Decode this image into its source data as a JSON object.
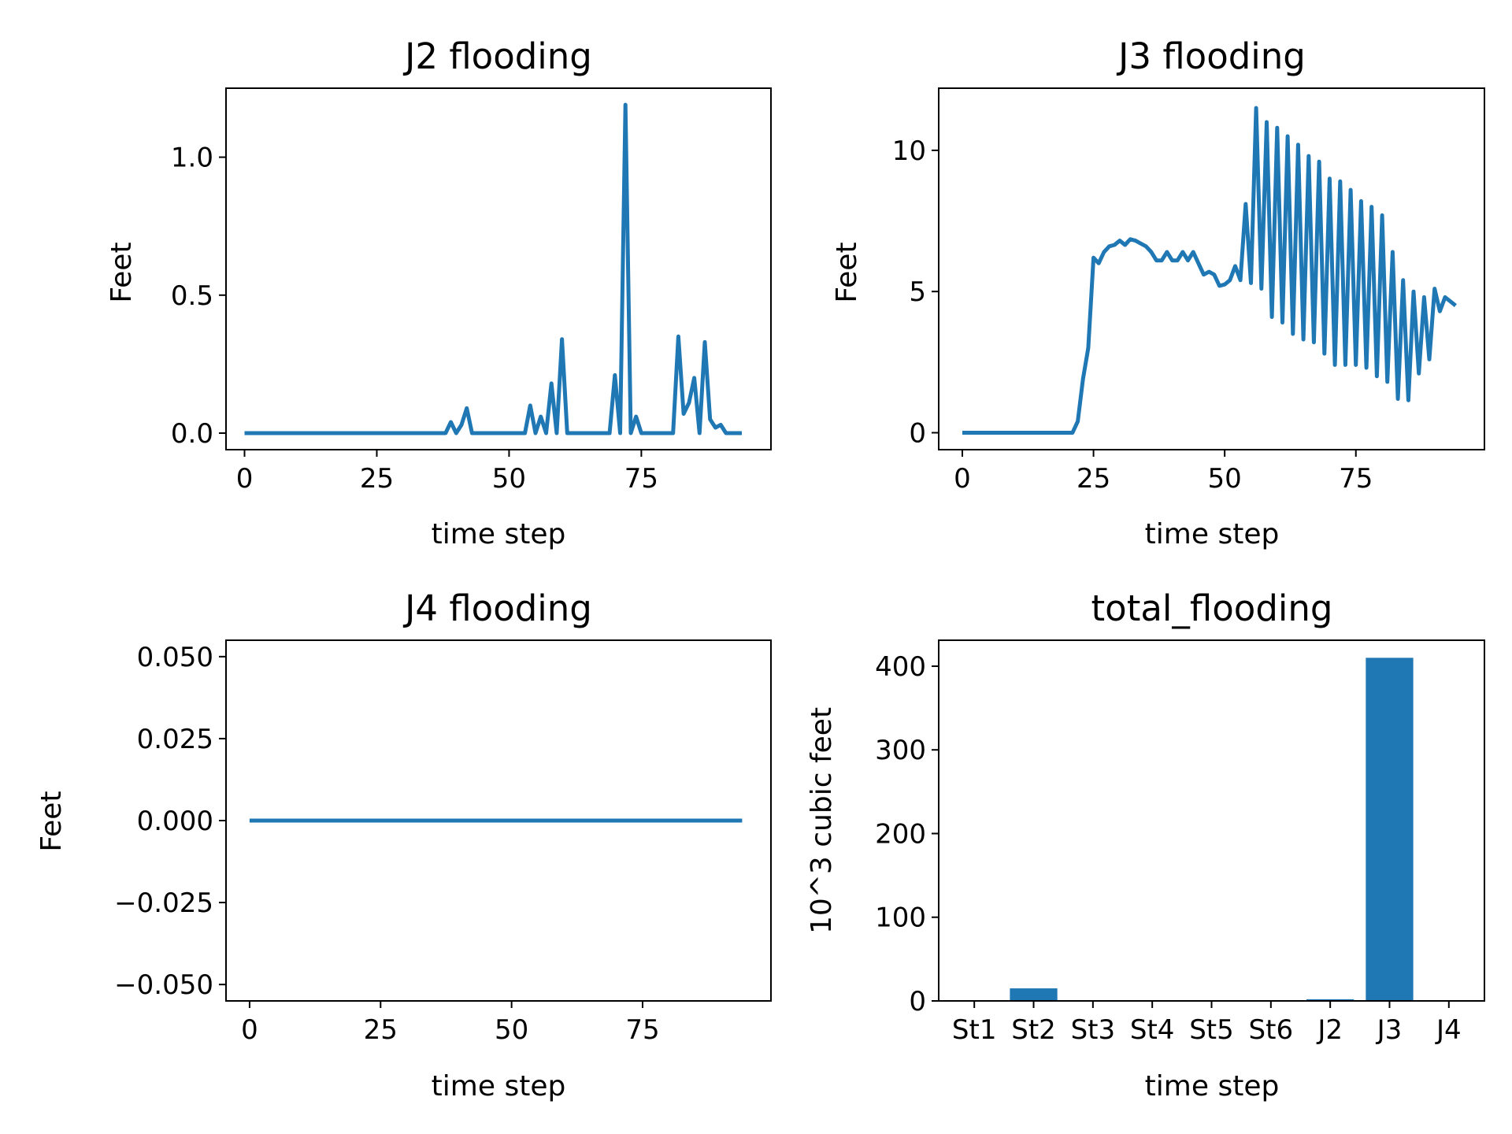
{
  "figure": {
    "background": "#ffffff",
    "series_color": "#1f77b4"
  },
  "chart_data": [
    {
      "type": "line",
      "title": "J2 flooding",
      "xlabel": "time step",
      "ylabel": "Feet",
      "xlim": [
        -3.5,
        99.5
      ],
      "ylim": [
        -0.06,
        1.25
      ],
      "xticks": [
        0,
        25,
        50,
        75
      ],
      "xtick_labels": [
        "0",
        "25",
        "50",
        "75"
      ],
      "yticks": [
        0.0,
        0.5,
        1.0
      ],
      "ytick_labels": [
        "0.0",
        "0.5",
        "1.0"
      ],
      "series": [
        {
          "x": [
            0,
            38,
            39,
            40,
            41,
            42,
            43,
            53,
            54,
            55,
            56,
            57,
            58,
            59,
            60,
            61,
            69,
            70,
            71,
            72,
            73,
            74,
            75,
            81,
            82,
            83,
            84,
            85,
            86,
            87,
            88,
            89,
            90,
            91,
            94
          ],
          "y": [
            0,
            0,
            0.04,
            0,
            0.03,
            0.09,
            0,
            0,
            0.1,
            0,
            0.06,
            0,
            0.18,
            0,
            0.34,
            0,
            0,
            0.21,
            0,
            1.19,
            0,
            0.06,
            0,
            0,
            0.35,
            0.07,
            0.11,
            0.2,
            0,
            0.33,
            0.05,
            0.02,
            0.03,
            0,
            0
          ]
        }
      ]
    },
    {
      "type": "line",
      "title": "J3 flooding",
      "xlabel": "time step",
      "ylabel": "Feet",
      "xlim": [
        -4.5,
        99.5
      ],
      "ylim": [
        -0.6,
        12.2
      ],
      "xticks": [
        0,
        25,
        50,
        75
      ],
      "xtick_labels": [
        "0",
        "25",
        "50",
        "75"
      ],
      "yticks": [
        0,
        5,
        10
      ],
      "ytick_labels": [
        "0",
        "5",
        "10"
      ],
      "series": [
        {
          "x": [
            0,
            21,
            22,
            23,
            24,
            25,
            26,
            27,
            28,
            29,
            30,
            31,
            32,
            33,
            34,
            35,
            36,
            37,
            38,
            39,
            40,
            41,
            42,
            43,
            44,
            45,
            46,
            47,
            48,
            49,
            50,
            51,
            52,
            53,
            54,
            55,
            56,
            57,
            58,
            59,
            60,
            61,
            62,
            63,
            64,
            65,
            66,
            67,
            68,
            69,
            70,
            71,
            72,
            73,
            74,
            75,
            76,
            77,
            78,
            79,
            80,
            81,
            82,
            83,
            84,
            85,
            86,
            87,
            88,
            89,
            90,
            91,
            92,
            93,
            94
          ],
          "y": [
            0,
            0,
            0.4,
            1.9,
            3.0,
            6.2,
            6.0,
            6.4,
            6.6,
            6.65,
            6.8,
            6.65,
            6.85,
            6.8,
            6.7,
            6.6,
            6.4,
            6.1,
            6.1,
            6.4,
            6.1,
            6.1,
            6.4,
            6.1,
            6.4,
            6.0,
            5.6,
            5.7,
            5.6,
            5.2,
            5.25,
            5.4,
            5.9,
            5.4,
            8.1,
            5.3,
            11.5,
            5.1,
            11.0,
            4.1,
            10.8,
            3.9,
            10.5,
            3.5,
            10.2,
            3.3,
            9.8,
            3.2,
            9.6,
            2.8,
            9.0,
            2.4,
            8.9,
            2.4,
            8.6,
            2.4,
            8.2,
            2.3,
            8.0,
            2.0,
            7.7,
            1.8,
            6.4,
            1.2,
            5.4,
            1.15,
            5.0,
            2.1,
            4.8,
            2.6,
            5.1,
            4.3,
            4.8,
            4.65,
            4.5
          ]
        }
      ]
    },
    {
      "type": "line",
      "title": "J4 flooding",
      "xlabel": "time step",
      "ylabel": "Feet",
      "xlim": [
        -4.5,
        99.5
      ],
      "ylim": [
        -0.055,
        0.055
      ],
      "xticks": [
        0,
        25,
        50,
        75
      ],
      "xtick_labels": [
        "0",
        "25",
        "50",
        "75"
      ],
      "yticks": [
        0.05,
        0.025,
        0.0,
        -0.025,
        -0.05
      ],
      "ytick_labels": [
        "0.050",
        "0.025",
        "0.000",
        "−0.025",
        "−0.050"
      ],
      "series": [
        {
          "x": [
            0,
            94
          ],
          "y": [
            0,
            0
          ]
        }
      ]
    },
    {
      "type": "bar",
      "title": "total_flooding",
      "xlabel": "time step",
      "ylabel": "10^3 cubic feet",
      "categories": [
        "St1",
        "St2",
        "St3",
        "St4",
        "St5",
        "St6",
        "J2",
        "J3",
        "J4"
      ],
      "values": [
        0,
        15,
        0,
        0,
        0,
        0,
        2,
        410,
        0
      ],
      "ylim": [
        0,
        431
      ],
      "yticks": [
        0,
        100,
        200,
        300,
        400
      ],
      "ytick_labels": [
        "0",
        "100",
        "200",
        "300",
        "400"
      ]
    }
  ]
}
